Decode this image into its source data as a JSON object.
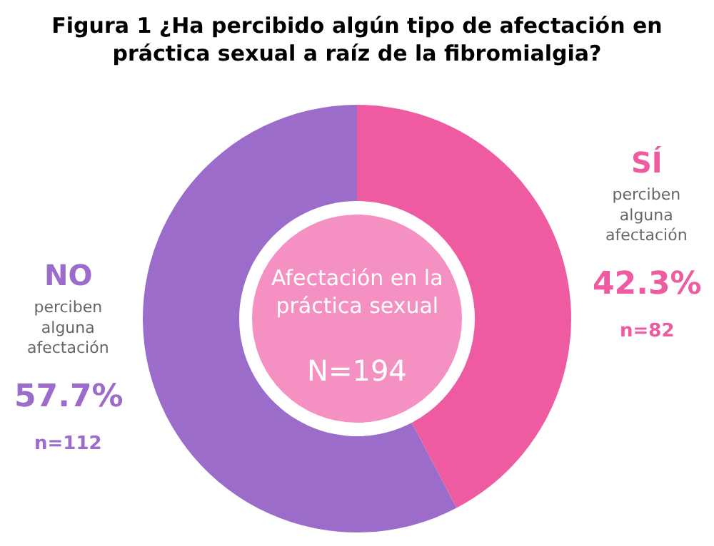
{
  "chart_data": {
    "type": "donut",
    "title": "Figura 1 ¿Ha percibido algún tipo de afectación en\npráctica sexual a raíz de la fibromialgia?",
    "categories": [
      "SÍ",
      "NO"
    ],
    "values": [
      42.3,
      57.7
    ],
    "colors": [
      "#ef5ba1",
      "#9b6cc9"
    ],
    "value_labels": [
      "42.3%",
      "57.7%"
    ],
    "annotations": [
      "Afectación en la práctica sexual",
      "N=194",
      "perciben alguna afectación",
      "n=82",
      "perciben alguna afectación",
      "n=112"
    ],
    "legend": false
  }
}
